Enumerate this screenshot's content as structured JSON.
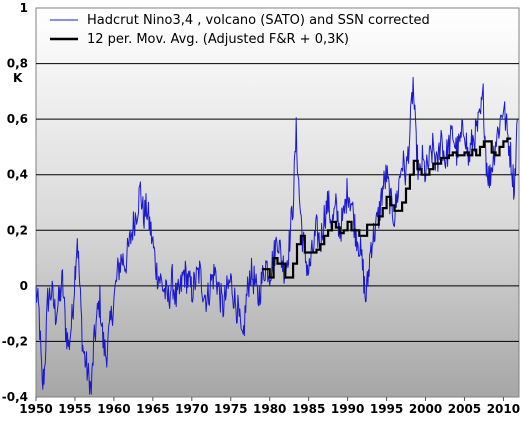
{
  "chart_data": {
    "type": "line",
    "ylabel": "K",
    "xlim": [
      1950,
      2012
    ],
    "ylim": [
      -0.4,
      1.0
    ],
    "x_ticks": [
      "1950",
      "1955",
      "1960",
      "1965",
      "1970",
      "1975",
      "1980",
      "1985",
      "1990",
      "1995",
      "2000",
      "2005",
      "2010"
    ],
    "y_ticks": [
      "-0,4",
      "-0,2",
      "0",
      "0,2",
      "0,4",
      "0,6",
      "0,8",
      "1"
    ],
    "grid": "horizontal",
    "background": "vertical gradient gray",
    "legend_position": "top",
    "series": [
      {
        "name": "Hadcrut Nino3,4 , volcano (SATO) and SSN corrected",
        "color": "#1a1acc",
        "style": "thin line, monthly",
        "keypoints": [
          [
            1950.0,
            -0.02
          ],
          [
            1950.4,
            -0.1
          ],
          [
            1950.8,
            -0.37
          ],
          [
            1951.1,
            -0.3
          ],
          [
            1951.5,
            -0.05
          ],
          [
            1952.0,
            -0.02
          ],
          [
            1952.5,
            -0.1
          ],
          [
            1953.0,
            -0.05
          ],
          [
            1953.4,
            0.02
          ],
          [
            1953.8,
            -0.15
          ],
          [
            1954.2,
            -0.22
          ],
          [
            1954.7,
            -0.1
          ],
          [
            1955.0,
            0.05
          ],
          [
            1955.3,
            0.18
          ],
          [
            1955.7,
            -0.05
          ],
          [
            1956.0,
            -0.22
          ],
          [
            1956.4,
            -0.28
          ],
          [
            1956.8,
            -0.34
          ],
          [
            1957.1,
            -0.38
          ],
          [
            1957.4,
            -0.22
          ],
          [
            1957.8,
            -0.12
          ],
          [
            1958.2,
            -0.05
          ],
          [
            1958.6,
            -0.2
          ],
          [
            1959.0,
            -0.25
          ],
          [
            1959.5,
            -0.15
          ],
          [
            1960.0,
            -0.05
          ],
          [
            1960.5,
            0.05
          ],
          [
            1961.0,
            0.1
          ],
          [
            1961.5,
            0.08
          ],
          [
            1962.0,
            0.15
          ],
          [
            1962.5,
            0.22
          ],
          [
            1963.0,
            0.28
          ],
          [
            1963.4,
            0.35
          ],
          [
            1963.8,
            0.25
          ],
          [
            1964.2,
            0.28
          ],
          [
            1964.6,
            0.22
          ],
          [
            1965.0,
            0.15
          ],
          [
            1965.5,
            0.05
          ],
          [
            1966.0,
            0.02
          ],
          [
            1966.5,
            -0.02
          ],
          [
            1967.0,
            -0.05
          ],
          [
            1967.5,
            0.02
          ],
          [
            1968.0,
            -0.05
          ],
          [
            1968.5,
            -0.02
          ],
          [
            1969.0,
            0.05
          ],
          [
            1969.5,
            0.02
          ],
          [
            1970.0,
            -0.02
          ],
          [
            1970.5,
            0.02
          ],
          [
            1971.0,
            0.05
          ],
          [
            1971.5,
            -0.02
          ],
          [
            1972.0,
            -0.05
          ],
          [
            1972.5,
            0.02
          ],
          [
            1973.0,
            0.05
          ],
          [
            1973.5,
            -0.02
          ],
          [
            1974.0,
            -0.08
          ],
          [
            1974.5,
            -0.02
          ],
          [
            1975.0,
            0.02
          ],
          [
            1975.5,
            -0.05
          ],
          [
            1976.0,
            -0.1
          ],
          [
            1976.5,
            -0.22
          ],
          [
            1977.0,
            -0.05
          ],
          [
            1977.5,
            0.05
          ],
          [
            1978.0,
            0.02
          ],
          [
            1978.5,
            -0.05
          ],
          [
            1979.0,
            0.02
          ],
          [
            1979.5,
            0.08
          ],
          [
            1980.0,
            0.05
          ],
          [
            1980.5,
            0.1
          ],
          [
            1981.0,
            0.18
          ],
          [
            1981.5,
            0.1
          ],
          [
            1982.0,
            0.05
          ],
          [
            1982.5,
            0.15
          ],
          [
            1983.0,
            0.3
          ],
          [
            1983.4,
            0.55
          ],
          [
            1983.8,
            0.32
          ],
          [
            1984.2,
            0.18
          ],
          [
            1984.6,
            0.1
          ],
          [
            1985.0,
            0.05
          ],
          [
            1985.5,
            0.12
          ],
          [
            1986.0,
            0.2
          ],
          [
            1986.5,
            0.15
          ],
          [
            1987.0,
            0.25
          ],
          [
            1987.5,
            0.3
          ],
          [
            1988.0,
            0.22
          ],
          [
            1988.5,
            0.28
          ],
          [
            1989.0,
            0.2
          ],
          [
            1989.5,
            0.25
          ],
          [
            1990.0,
            0.35
          ],
          [
            1990.5,
            0.3
          ],
          [
            1991.0,
            0.2
          ],
          [
            1991.5,
            0.15
          ],
          [
            1992.0,
            0.05
          ],
          [
            1992.3,
            -0.05
          ],
          [
            1992.6,
            0.02
          ],
          [
            1993.0,
            0.15
          ],
          [
            1993.5,
            0.2
          ],
          [
            1994.0,
            0.25
          ],
          [
            1994.5,
            0.35
          ],
          [
            1995.0,
            0.4
          ],
          [
            1995.5,
            0.3
          ],
          [
            1996.0,
            0.25
          ],
          [
            1996.5,
            0.35
          ],
          [
            1997.0,
            0.45
          ],
          [
            1997.5,
            0.4
          ],
          [
            1998.0,
            0.55
          ],
          [
            1998.4,
            0.73
          ],
          [
            1998.8,
            0.5
          ],
          [
            1999.2,
            0.38
          ],
          [
            1999.6,
            0.45
          ],
          [
            2000.0,
            0.4
          ],
          [
            2000.5,
            0.45
          ],
          [
            2001.0,
            0.5
          ],
          [
            2001.5,
            0.42
          ],
          [
            2002.0,
            0.55
          ],
          [
            2002.5,
            0.45
          ],
          [
            2003.0,
            0.5
          ],
          [
            2003.5,
            0.55
          ],
          [
            2004.0,
            0.48
          ],
          [
            2004.5,
            0.52
          ],
          [
            2005.0,
            0.58
          ],
          [
            2005.5,
            0.45
          ],
          [
            2006.0,
            0.52
          ],
          [
            2006.5,
            0.55
          ],
          [
            2007.0,
            0.6
          ],
          [
            2007.4,
            0.68
          ],
          [
            2007.8,
            0.45
          ],
          [
            2008.2,
            0.38
          ],
          [
            2008.6,
            0.45
          ],
          [
            2009.0,
            0.52
          ],
          [
            2009.5,
            0.58
          ],
          [
            2010.0,
            0.65
          ],
          [
            2010.5,
            0.55
          ],
          [
            2011.0,
            0.45
          ],
          [
            2011.4,
            0.35
          ],
          [
            2011.8,
            0.6
          ]
        ]
      },
      {
        "name": "12 per. Mov. Avg. (Adjusted F&R + 0,3K)",
        "color": "#000000",
        "style": "thick stepped line",
        "points": [
          [
            1979.0,
            0.06
          ],
          [
            1979.5,
            0.06
          ],
          [
            1980.0,
            0.03
          ],
          [
            1980.5,
            0.1
          ],
          [
            1981.0,
            0.08
          ],
          [
            1981.5,
            0.08
          ],
          [
            1982.0,
            0.03
          ],
          [
            1982.5,
            0.03
          ],
          [
            1983.0,
            0.08
          ],
          [
            1983.5,
            0.15
          ],
          [
            1984.0,
            0.18
          ],
          [
            1984.5,
            0.12
          ],
          [
            1985.0,
            0.12
          ],
          [
            1985.5,
            0.12
          ],
          [
            1986.0,
            0.13
          ],
          [
            1986.5,
            0.15
          ],
          [
            1987.0,
            0.18
          ],
          [
            1987.5,
            0.2
          ],
          [
            1988.0,
            0.23
          ],
          [
            1988.5,
            0.21
          ],
          [
            1989.0,
            0.19
          ],
          [
            1989.5,
            0.2
          ],
          [
            1990.0,
            0.23
          ],
          [
            1990.5,
            0.2
          ],
          [
            1991.0,
            0.2
          ],
          [
            1991.5,
            0.18
          ],
          [
            1992.0,
            0.18
          ],
          [
            1992.5,
            0.22
          ],
          [
            1993.0,
            0.22
          ],
          [
            1993.5,
            0.22
          ],
          [
            1994.0,
            0.25
          ],
          [
            1994.5,
            0.28
          ],
          [
            1995.0,
            0.32
          ],
          [
            1995.5,
            0.29
          ],
          [
            1996.0,
            0.27
          ],
          [
            1996.5,
            0.27
          ],
          [
            1997.0,
            0.3
          ],
          [
            1997.5,
            0.35
          ],
          [
            1998.0,
            0.4
          ],
          [
            1998.5,
            0.45
          ],
          [
            1999.0,
            0.42
          ],
          [
            1999.5,
            0.4
          ],
          [
            2000.0,
            0.4
          ],
          [
            2000.5,
            0.42
          ],
          [
            2001.0,
            0.44
          ],
          [
            2001.5,
            0.44
          ],
          [
            2002.0,
            0.46
          ],
          [
            2002.5,
            0.46
          ],
          [
            2003.0,
            0.47
          ],
          [
            2003.5,
            0.48
          ],
          [
            2004.0,
            0.47
          ],
          [
            2004.5,
            0.47
          ],
          [
            2005.0,
            0.48
          ],
          [
            2005.5,
            0.47
          ],
          [
            2006.0,
            0.49
          ],
          [
            2006.5,
            0.47
          ],
          [
            2007.0,
            0.5
          ],
          [
            2007.5,
            0.52
          ],
          [
            2008.0,
            0.52
          ],
          [
            2008.5,
            0.48
          ],
          [
            2009.0,
            0.47
          ],
          [
            2009.5,
            0.5
          ],
          [
            2010.0,
            0.52
          ],
          [
            2010.5,
            0.53
          ],
          [
            2011.0,
            0.53
          ]
        ]
      }
    ]
  }
}
